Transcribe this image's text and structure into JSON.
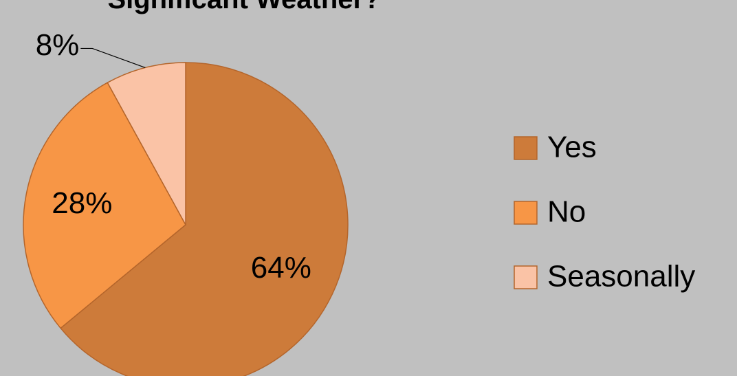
{
  "chart_data": {
    "type": "pie",
    "title": "Significant Weather?",
    "categories": [
      "Yes",
      "No",
      "Seasonally"
    ],
    "values": [
      64,
      28,
      8
    ],
    "value_labels": [
      "64%",
      "28%",
      "8%"
    ],
    "colors": [
      "#cd7b3a",
      "#f79646",
      "#fac3a6"
    ],
    "legend": "right"
  }
}
